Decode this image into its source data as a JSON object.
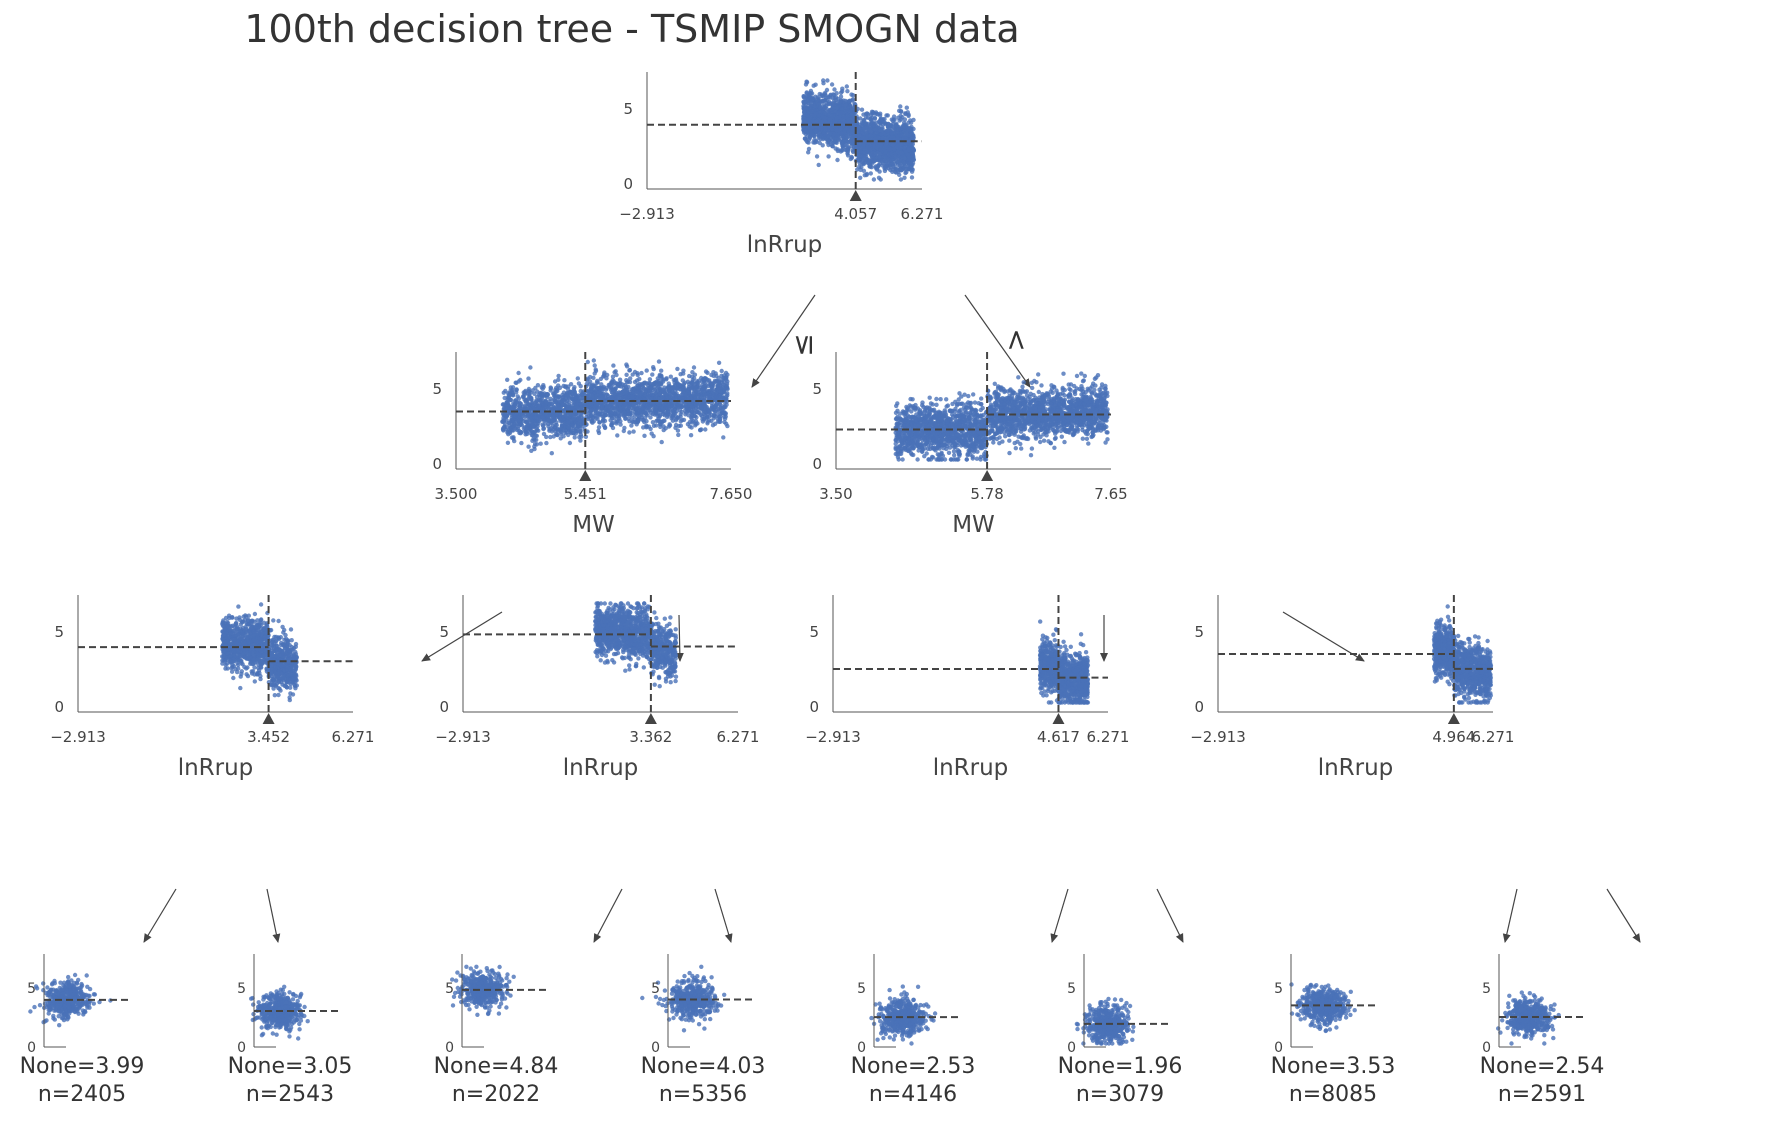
{
  "title": "100th decision tree - TSMIP SMOGN data",
  "colors": {
    "points": "#4a72b8",
    "axis": "#555555",
    "split": "#444444",
    "text": "#333333"
  },
  "edge_labels": {
    "left": "≤",
    "right": ">"
  },
  "nodes": [
    {
      "id": "root",
      "feature": "lnRrup",
      "split": "4.057",
      "ticks": [
        "−2.913",
        "4.057",
        "6.271"
      ],
      "xrange": [
        -2.913,
        6.271
      ],
      "split_value": 4.057,
      "yticks": [
        "0",
        "5"
      ],
      "mean_left": 3.95,
      "mean_right": 2.85
    },
    {
      "id": "n1",
      "feature": "MW",
      "split": "5.451",
      "ticks": [
        "3.500",
        "5.451",
        "7.650"
      ],
      "xrange": [
        3.5,
        7.65
      ],
      "split_value": 5.451,
      "yticks": [
        "0",
        "5"
      ],
      "mean_left": 3.5,
      "mean_right": 4.2
    },
    {
      "id": "n2",
      "feature": "MW",
      "split": "5.78",
      "ticks": [
        "3.50",
        "5.78",
        "7.65"
      ],
      "xrange": [
        3.5,
        7.65
      ],
      "split_value": 5.78,
      "yticks": [
        "0",
        "5"
      ],
      "mean_left": 2.3,
      "mean_right": 3.3
    },
    {
      "id": "n3",
      "feature": "lnRrup",
      "split": "3.452",
      "ticks": [
        "−2.913",
        "3.452",
        "6.271"
      ],
      "xrange": [
        -2.913,
        6.271
      ],
      "split_value": 3.452,
      "yticks": [
        "0",
        "5"
      ],
      "mean_left": 3.99,
      "mean_right": 3.05
    },
    {
      "id": "n4",
      "feature": "lnRrup",
      "split": "3.362",
      "ticks": [
        "−2.913",
        "3.362",
        "6.271"
      ],
      "xrange": [
        -2.913,
        6.271
      ],
      "split_value": 3.362,
      "yticks": [
        "0",
        "5"
      ],
      "mean_left": 4.84,
      "mean_right": 4.03
    },
    {
      "id": "n5",
      "feature": "lnRrup",
      "split": "4.617",
      "ticks": [
        "−2.913",
        "4.617",
        "6.271"
      ],
      "xrange": [
        -2.913,
        6.271
      ],
      "split_value": 4.617,
      "yticks": [
        "0",
        "5"
      ],
      "mean_left": 2.53,
      "mean_right": 1.96
    },
    {
      "id": "n6",
      "feature": "lnRrup",
      "split": "4.964",
      "ticks": [
        "−2.913",
        "4.964",
        "6.271"
      ],
      "xrange": [
        -2.913,
        6.271
      ],
      "split_value": 4.964,
      "yticks": [
        "0",
        "5"
      ],
      "mean_left": 3.53,
      "mean_right": 2.54
    }
  ],
  "leaves": [
    {
      "label": "None=3.99",
      "n": "n=2405",
      "value": 3.99
    },
    {
      "label": "None=3.05",
      "n": "n=2543",
      "value": 3.05
    },
    {
      "label": "None=4.84",
      "n": "n=2022",
      "value": 4.84
    },
    {
      "label": "None=4.03",
      "n": "n=5356",
      "value": 4.03
    },
    {
      "label": "None=2.53",
      "n": "n=4146",
      "value": 2.53
    },
    {
      "label": "None=1.96",
      "n": "n=3079",
      "value": 1.96
    },
    {
      "label": "None=3.53",
      "n": "n=8085",
      "value": 3.53
    },
    {
      "label": "None=2.54",
      "n": "n=2591",
      "value": 2.54
    }
  ]
}
